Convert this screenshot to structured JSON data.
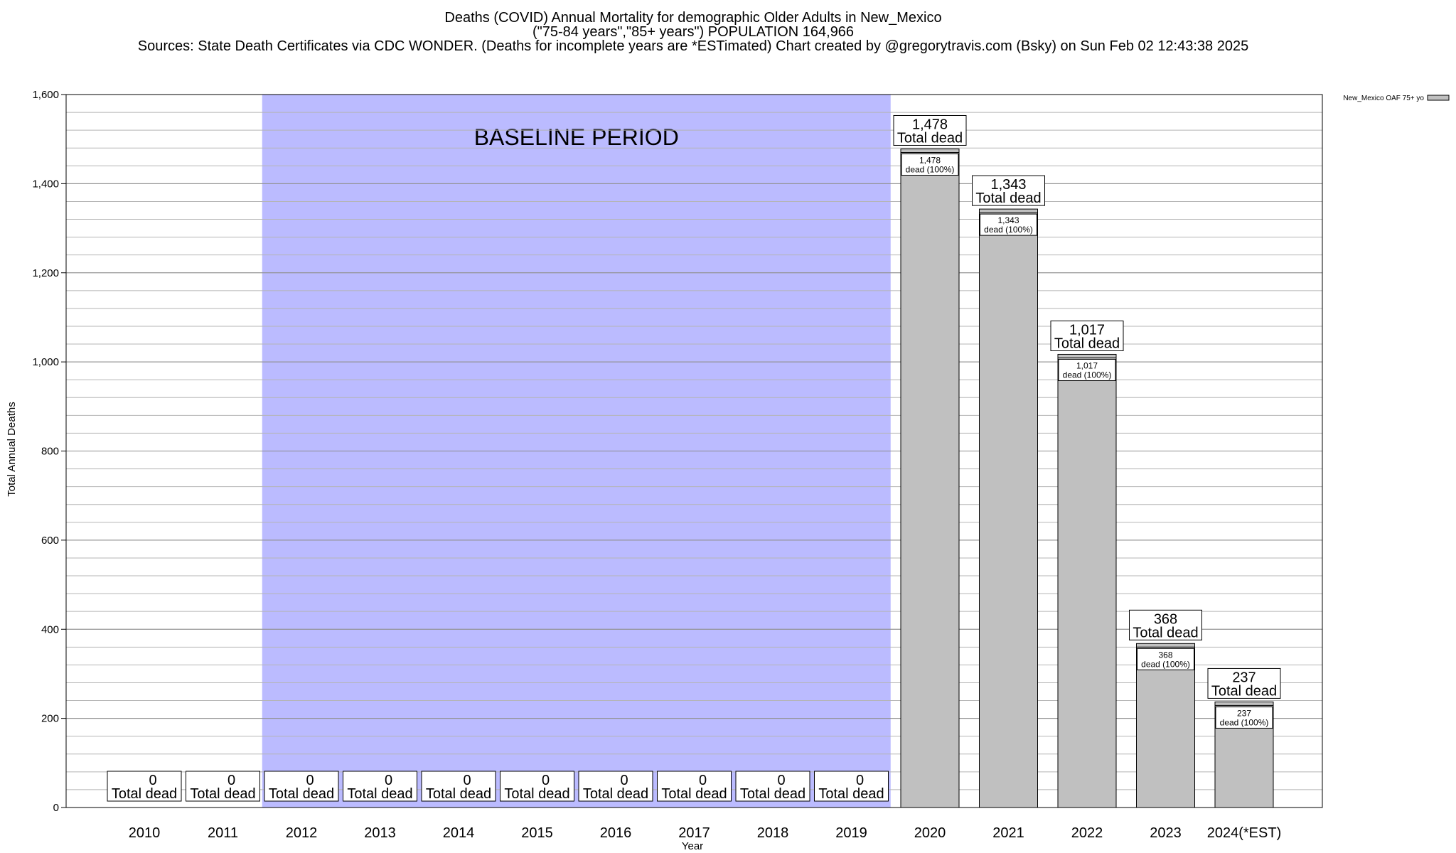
{
  "title_lines": [
    "Deaths (COVID) Annual Mortality for demographic Older Adults in New_Mexico",
    "(\"75-84 years\",\"85+ years\") POPULATION 164,966",
    "Sources: State Death Certificates via CDC WONDER. (Deaths for incomplete years are *ESTimated)                Chart created by @gregorytravis.com (Bsky) on Sun Feb 02 12:43:38 2025"
  ],
  "chart_data": {
    "type": "bar",
    "categories": [
      "2010",
      "2011",
      "2012",
      "2013",
      "2014",
      "2015",
      "2016",
      "2017",
      "2018",
      "2019",
      "2020",
      "2021",
      "2022",
      "2023",
      "2024(*EST)"
    ],
    "series": [
      {
        "name": "New_Mexico OAF 75+ yo",
        "values": [
          0,
          0,
          0,
          0,
          0,
          0,
          0,
          0,
          0,
          0,
          1478,
          1343,
          1017,
          368,
          237
        ],
        "value_labels": [
          "0",
          "0",
          "0",
          "0",
          "0",
          "0",
          "0",
          "0",
          "0",
          "0",
          "1,478",
          "1,343",
          "1,017",
          "368",
          "237"
        ],
        "color": "#c0c0c0"
      }
    ],
    "total_label_suffix": "Total dead",
    "inner_label_suffix": "dead (100%)",
    "xlabel": "Year",
    "ylabel": "Total Annual Deaths",
    "ylim": [
      0,
      1600
    ],
    "yticks": [
      0,
      200,
      400,
      600,
      800,
      1000,
      1200,
      1400,
      1600
    ],
    "ytick_labels": [
      "0",
      "200",
      "400",
      "600",
      "800",
      "1,000",
      "1,200",
      "1,400",
      "1,600"
    ],
    "minor_grid_step": 40,
    "baseline_period": {
      "label": "BASELINE PERIOD",
      "from_category": "2012",
      "to_category": "2019",
      "color": "#bbbbff"
    },
    "legend_position": "top-right",
    "grid": true
  }
}
